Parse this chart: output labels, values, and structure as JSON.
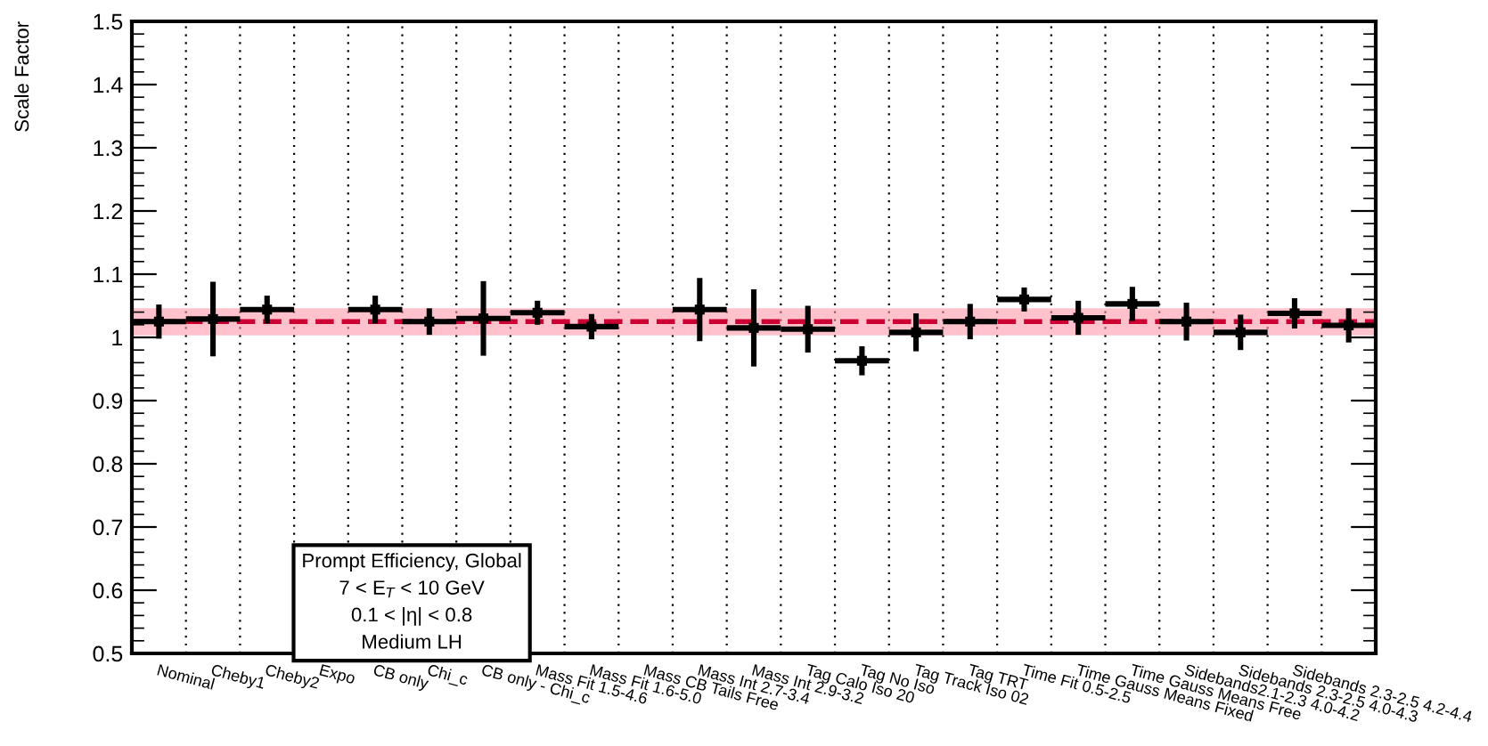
{
  "chart_data": {
    "type": "scatter",
    "ylabel": "Scale Factor",
    "categories": [
      "Nominal",
      "Cheby1",
      "Cheby2",
      "Expo",
      "CB only",
      "Chi_c",
      "CB only - Chi_c",
      "Mass Fit 1.5-4.6",
      "Mass Fit 1.6-5.0",
      "Mass CB Tails Free",
      "Mass Int 2.7-3.4",
      "Mass Int 2.9-3.2",
      "Tag Calo Iso 20",
      "Tag No Iso",
      "Tag Track Iso 02",
      "Tag TRT",
      "Time Fit 0.5-2.5",
      "Time Gauss Means Fixed",
      "Time Gauss Means Free",
      "Sidebands2.1-2.3 4.0-4.2",
      "Sidebands 2.3-2.5 4.0-4.3",
      "Sidebands 2.3-2.5 4.2-4.4",
      null
    ],
    "series": [
      {
        "color": "#000000",
        "values": [
          1.025,
          1.029,
          1.044,
          null,
          1.044,
          1.025,
          1.03,
          1.039,
          1.017,
          null,
          1.044,
          1.015,
          1.013,
          0.963,
          1.008,
          1.025,
          1.06,
          1.031,
          1.053,
          1.025,
          1.008,
          1.038,
          1.019
        ],
        "errors": [
          0.027,
          0.059,
          0.022,
          null,
          0.022,
          0.021,
          0.059,
          0.019,
          0.02,
          null,
          0.05,
          0.061,
          0.037,
          0.023,
          0.03,
          0.028,
          0.019,
          0.027,
          0.027,
          0.03,
          0.028,
          0.024,
          0.027
        ]
      }
    ],
    "marker": "square",
    "ylim": [
      0.5,
      1.5
    ],
    "yticks": [
      0.5,
      0.6,
      0.7,
      0.8,
      0.9,
      {
        "value": 1.0,
        "label": "1"
      },
      1.1,
      1.2,
      1.3,
      1.4,
      1.5
    ],
    "grid": "x",
    "ref_lines": [
      {
        "axis": "y",
        "value": 1.025,
        "color": "#cc0033",
        "line_style": "dashed"
      }
    ],
    "bands": [
      {
        "axis": "y",
        "from": 1.003,
        "to": 1.046,
        "color": "#ff99aa"
      }
    ],
    "annotations": [
      "Prompt Efficiency, Global\n7 < E$_{T}$ < 10 GeV\n0.1 < |η| < 0.8\nMedium LH"
    ]
  }
}
